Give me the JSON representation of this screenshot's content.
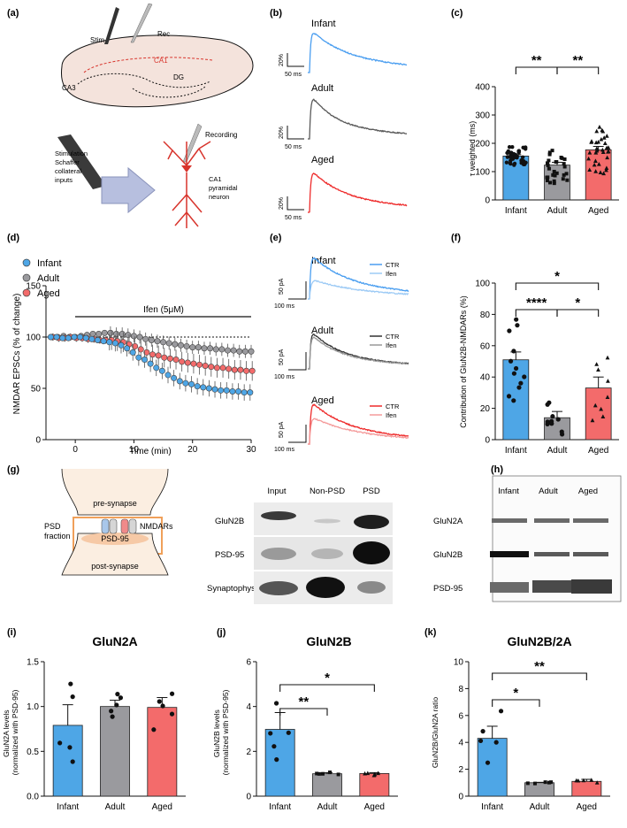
{
  "colors": {
    "infant": "#4ea6e6",
    "adult": "#9a9a9e",
    "aged": "#f36b6b",
    "infant_line": "#4a9ef0",
    "adult_line": "#5a5a5a",
    "aged_line": "#ee2b2b"
  },
  "panels": {
    "a": {
      "label": "(a)",
      "stim": "Stim",
      "rec": "Rec",
      "ca1": "CA1",
      "ca3": "CA3",
      "dg": "DG",
      "recording": "Recording",
      "stim_lines": [
        "Stimulation",
        "Schaffer",
        "collateral",
        "inputs"
      ],
      "neuron_lines": [
        "CA1",
        "pyramidal",
        "neuron"
      ]
    },
    "b": {
      "label": "(b)",
      "groups": [
        "Infant",
        "Adult",
        "Aged"
      ],
      "scale_y": "20%",
      "scale_x": "50 ms"
    },
    "c": {
      "label": "(c)",
      "ylabel": "τ weighted (ms)",
      "sig": [
        "**",
        "**"
      ]
    },
    "d": {
      "label": "(d)",
      "legend": [
        "Infant",
        "Adult",
        "Aged"
      ],
      "drug": "Ifen (5μM)",
      "ylabel": "NMDAR EPSCs (% of change)",
      "xlabel": "Time (min)"
    },
    "e": {
      "label": "(e)",
      "groups": [
        "Infant",
        "Adult",
        "Aged"
      ],
      "legend": [
        "CTR",
        "Ifen"
      ],
      "scale_y": "50 pA",
      "scale_x": "100 ms"
    },
    "f": {
      "label": "(f)",
      "ylabel": "Contribution of GluN2B-NMDARs (%)",
      "sig": [
        "*",
        "****",
        "*"
      ]
    },
    "g": {
      "label": "(g)",
      "pre": "pre-synapse",
      "post": "post-synapse",
      "psd": "PSD-95",
      "nmdars": "NMDARs",
      "fraction": [
        "PSD",
        "fraction"
      ],
      "cols": [
        "Input",
        "Non-PSD",
        "PSD"
      ],
      "rows": [
        "GluN2B",
        "PSD-95",
        "Synaptophysin"
      ]
    },
    "h": {
      "label": "(h)",
      "cols": [
        "Infant",
        "Adult",
        "Aged"
      ],
      "rows": [
        "GluN2A",
        "GluN2B",
        "PSD-95"
      ]
    },
    "i": {
      "label": "(i)",
      "title": "GluN2A",
      "ylabel": [
        "GluN2A levels",
        "(normalized with PSD-95)"
      ]
    },
    "j": {
      "label": "(j)",
      "title": "GluN2B",
      "ylabel": [
        "GluN2B levels",
        "(normalized with PSD-95)"
      ],
      "sig": [
        "**",
        "*"
      ]
    },
    "k": {
      "label": "(k)",
      "title": "GluN2B/2A",
      "ylabel": "GluN2B/GluN2A ratio",
      "sig": [
        "*",
        "**"
      ]
    }
  },
  "chart_data": [
    {
      "panel": "c",
      "type": "bar",
      "categories": [
        "Infant",
        "Adult",
        "Aged"
      ],
      "values": [
        155,
        123,
        177
      ],
      "errors": [
        5,
        10,
        12
      ],
      "ylim": [
        0,
        400
      ],
      "yticks": [
        0,
        100,
        200,
        300,
        400
      ],
      "ylabel": "τ weighted (ms)"
    },
    {
      "panel": "d",
      "type": "line",
      "xlabel": "Time (min)",
      "ylabel": "NMDAR EPSCs (% of change)",
      "xlim": [
        -5,
        30
      ],
      "ylim": [
        0,
        150
      ],
      "xticks": [
        0,
        10,
        20,
        30
      ],
      "yticks": [
        0,
        50,
        100,
        150
      ],
      "x": [
        -4,
        -3,
        -2,
        -1,
        0,
        1,
        2,
        3,
        4,
        5,
        6,
        7,
        8,
        9,
        10,
        11,
        12,
        13,
        14,
        15,
        16,
        17,
        18,
        19,
        20,
        21,
        22,
        23,
        24,
        25,
        26,
        27,
        28,
        29,
        30
      ],
      "series": [
        {
          "name": "Infant",
          "values": [
            100,
            100,
            99,
            99,
            100,
            100,
            99,
            98,
            97,
            96,
            95,
            94,
            92,
            89,
            85,
            80,
            78,
            74,
            70,
            67,
            63,
            60,
            57,
            55,
            54,
            52,
            51,
            50,
            49,
            48,
            48,
            47,
            47,
            46,
            46
          ],
          "error": 5
        },
        {
          "name": "Adult",
          "values": [
            100,
            100,
            101,
            100,
            100,
            101,
            102,
            103,
            103,
            104,
            104,
            103,
            103,
            102,
            101,
            100,
            98,
            97,
            96,
            95,
            94,
            93,
            92,
            91,
            90,
            90,
            89,
            89,
            88,
            88,
            87,
            87,
            86,
            86,
            86
          ],
          "error": 4
        },
        {
          "name": "Aged",
          "values": [
            100,
            99,
            99,
            100,
            99,
            99,
            98,
            98,
            97,
            97,
            97,
            96,
            95,
            93,
            91,
            88,
            85,
            83,
            82,
            80,
            79,
            78,
            76,
            75,
            74,
            73,
            72,
            71,
            70,
            70,
            69,
            68,
            68,
            67,
            67
          ],
          "error": 6
        }
      ]
    },
    {
      "panel": "f",
      "type": "bar",
      "categories": [
        "Infant",
        "Adult",
        "Aged"
      ],
      "values": [
        51,
        14,
        33
      ],
      "errors": [
        5,
        4,
        7
      ],
      "ylim": [
        0,
        100
      ],
      "yticks": [
        0,
        20,
        40,
        60,
        80,
        100
      ],
      "ylabel": "Contribution of GluN2B-NMDARs (%)"
    },
    {
      "panel": "i",
      "type": "bar",
      "categories": [
        "Infant",
        "Adult",
        "Aged"
      ],
      "values": [
        0.79,
        1.0,
        0.99
      ],
      "errors": [
        0.23,
        0.07,
        0.11
      ],
      "ylim": [
        0,
        1.5
      ],
      "yticks": [
        0.0,
        0.5,
        1.0,
        1.5
      ],
      "title": "GluN2A"
    },
    {
      "panel": "j",
      "type": "bar",
      "categories": [
        "Infant",
        "Adult",
        "Aged"
      ],
      "values": [
        2.98,
        1.0,
        1.01
      ],
      "errors": [
        0.75,
        0.05,
        0.04
      ],
      "ylim": [
        0,
        6
      ],
      "yticks": [
        0,
        2,
        4,
        6
      ],
      "title": "GluN2B"
    },
    {
      "panel": "k",
      "type": "bar",
      "categories": [
        "Infant",
        "Adult",
        "Aged"
      ],
      "values": [
        4.3,
        1.0,
        1.1
      ],
      "errors": [
        0.9,
        0.03,
        0.15
      ],
      "ylim": [
        0,
        10
      ],
      "yticks": [
        0,
        2,
        4,
        6,
        8,
        10
      ],
      "title": "GluN2B/2A"
    }
  ]
}
